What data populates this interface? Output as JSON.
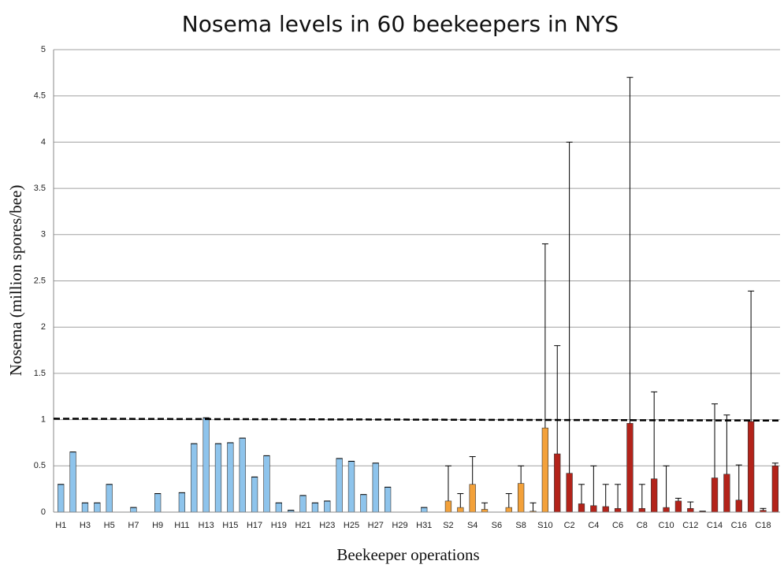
{
  "chart_data": {
    "type": "bar",
    "title": "Nosema levels in 60 beekeepers in NYS",
    "y_label": "Nosema (million spores/bee)",
    "x_label": "Beekeeper operations",
    "categories": [
      "H1",
      null,
      "H3",
      null,
      "H5",
      null,
      "H7",
      null,
      "H9",
      null,
      "H11",
      null,
      "H13",
      null,
      "H15",
      null,
      "H17",
      null,
      "H19",
      null,
      "H21",
      null,
      "H23",
      null,
      "H25",
      null,
      "H27",
      null,
      "H29",
      null,
      "H31",
      null,
      "S2",
      null,
      "S4",
      null,
      "S6",
      null,
      "S8",
      null,
      "S10",
      null,
      "C2",
      null,
      "C4",
      null,
      "C6",
      null,
      "C8",
      null,
      "C10",
      null,
      "C12",
      null,
      "C14",
      null,
      "C16",
      null,
      "C18",
      null
    ],
    "values": [
      0.3,
      0.65,
      0.1,
      0.1,
      0.3,
      0,
      0.05,
      0,
      0.2,
      0,
      0.21,
      0.74,
      1.02,
      0.74,
      0.75,
      0.8,
      0.38,
      0.61,
      0.1,
      0.02,
      0.18,
      0.1,
      0.12,
      0.58,
      0.55,
      0.19,
      0.53,
      0.27,
      0,
      0,
      0.05,
      0,
      0.12,
      0.05,
      0.3,
      0.03,
      0,
      0.05,
      0.31,
      0.01,
      0.91,
      0.63,
      0.42,
      0.09,
      0.07,
      0.06,
      0.04,
      0.96,
      0.04,
      0.36,
      0.05,
      0.12,
      0.04,
      0.01,
      0.37,
      0.41,
      0.13,
      0.98,
      0.02,
      0.5
    ],
    "errors": [
      0,
      0,
      0,
      0,
      0,
      0,
      0,
      0,
      0,
      0,
      0,
      0,
      0,
      0,
      0,
      0,
      0,
      0,
      0,
      0,
      0,
      0,
      0,
      0,
      0,
      0,
      0,
      0,
      0,
      0,
      0,
      0,
      0.38,
      0.15,
      0.3,
      0.07,
      0,
      0.15,
      0.19,
      0.09,
      1.99,
      1.17,
      3.58,
      0.21,
      0.43,
      0.24,
      0.26,
      3.74,
      0.26,
      0.94,
      0.45,
      0.03,
      0.07,
      0,
      0.8,
      0.64,
      0.38,
      1.41,
      0.02,
      0.03
    ],
    "colors": [
      "#8ec4ec",
      "#8ec4ec",
      "#8ec4ec",
      "#8ec4ec",
      "#8ec4ec",
      "#8ec4ec",
      "#8ec4ec",
      "#8ec4ec",
      "#8ec4ec",
      "#8ec4ec",
      "#8ec4ec",
      "#8ec4ec",
      "#8ec4ec",
      "#8ec4ec",
      "#8ec4ec",
      "#8ec4ec",
      "#8ec4ec",
      "#8ec4ec",
      "#8ec4ec",
      "#8ec4ec",
      "#8ec4ec",
      "#8ec4ec",
      "#8ec4ec",
      "#8ec4ec",
      "#8ec4ec",
      "#8ec4ec",
      "#8ec4ec",
      "#8ec4ec",
      "#8ec4ec",
      "#8ec4ec",
      "#8ec4ec",
      "#f3a13a",
      "#f3a13a",
      "#f3a13a",
      "#f3a13a",
      "#f3a13a",
      "#f3a13a",
      "#f3a13a",
      "#f3a13a",
      "#f3a13a",
      "#f3a13a",
      "#b3231a",
      "#b3231a",
      "#b3231a",
      "#b3231a",
      "#b3231a",
      "#b3231a",
      "#b3231a",
      "#b3231a",
      "#b3231a",
      "#b3231a",
      "#b3231a",
      "#b3231a",
      "#b3231a",
      "#b3231a",
      "#b3231a",
      "#b3231a",
      "#b3231a",
      "#b3231a",
      "#b3231a"
    ],
    "reference_line": {
      "start": 1.01,
      "end": 0.99
    },
    "ylim": [
      0,
      5
    ],
    "yticks": [
      0,
      0.5,
      1,
      1.5,
      2,
      2.5,
      3,
      3.5,
      4,
      4.5,
      5
    ],
    "grid": true
  }
}
